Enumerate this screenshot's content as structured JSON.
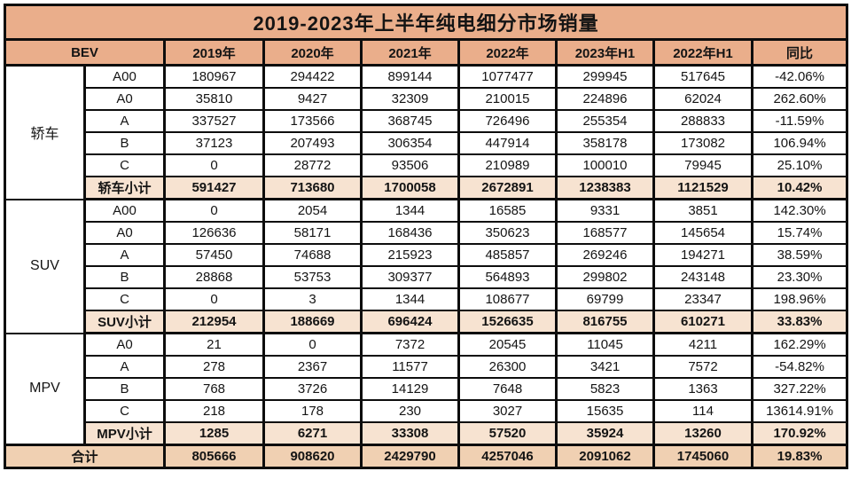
{
  "title": "2019-2023年上半年纯电细分市场销量",
  "colors": {
    "header_bg": "#eaae8b",
    "subtotal_bg": "#f7e3d1",
    "total_bg": "#f0d0b2",
    "border": "#0d0d0d",
    "text": "#141414",
    "row_bg": "#ffffff"
  },
  "chart_data": {
    "type": "table",
    "title": "2019-2023年上半年纯电细分市场销量",
    "columns": [
      "BEV",
      "2019年",
      "2020年",
      "2021年",
      "2022年",
      "2023年H1",
      "2022年H1",
      "同比"
    ],
    "sections": [
      {
        "group": "轿车",
        "rows": [
          [
            "A00",
            "180967",
            "294422",
            "899144",
            "1077477",
            "299945",
            "517645",
            "-42.06%"
          ],
          [
            "A0",
            "35810",
            "9427",
            "32309",
            "210015",
            "224896",
            "62024",
            "262.60%"
          ],
          [
            "A",
            "337527",
            "173566",
            "368745",
            "726496",
            "255354",
            "288833",
            "-11.59%"
          ],
          [
            "B",
            "37123",
            "207493",
            "306354",
            "447914",
            "358178",
            "173082",
            "106.94%"
          ],
          [
            "C",
            "0",
            "28772",
            "93506",
            "210989",
            "100010",
            "79945",
            "25.10%"
          ]
        ],
        "subtotal": [
          "轿车小计",
          "591427",
          "713680",
          "1700058",
          "2672891",
          "1238383",
          "1121529",
          "10.42%"
        ]
      },
      {
        "group": "SUV",
        "rows": [
          [
            "A00",
            "0",
            "2054",
            "1344",
            "16585",
            "9331",
            "3851",
            "142.30%"
          ],
          [
            "A0",
            "126636",
            "58171",
            "168436",
            "350623",
            "168577",
            "145654",
            "15.74%"
          ],
          [
            "A",
            "57450",
            "74688",
            "215923",
            "485857",
            "269246",
            "194271",
            "38.59%"
          ],
          [
            "B",
            "28868",
            "53753",
            "309377",
            "564893",
            "299802",
            "243148",
            "23.30%"
          ],
          [
            "C",
            "0",
            "3",
            "1344",
            "108677",
            "69799",
            "23347",
            "198.96%"
          ]
        ],
        "subtotal": [
          "SUV小计",
          "212954",
          "188669",
          "696424",
          "1526635",
          "816755",
          "610271",
          "33.83%"
        ]
      },
      {
        "group": "MPV",
        "rows": [
          [
            "A0",
            "21",
            "0",
            "7372",
            "20545",
            "11045",
            "4211",
            "162.29%"
          ],
          [
            "A",
            "278",
            "2367",
            "11577",
            "26300",
            "3421",
            "7572",
            "-54.82%"
          ],
          [
            "B",
            "768",
            "3726",
            "14129",
            "7648",
            "5823",
            "1363",
            "327.22%"
          ],
          [
            "C",
            "218",
            "178",
            "230",
            "3027",
            "15635",
            "114",
            "13614.91%"
          ]
        ],
        "subtotal": [
          "MPV小计",
          "1285",
          "6271",
          "33308",
          "57520",
          "35924",
          "13260",
          "170.92%"
        ]
      }
    ],
    "total": [
      "合计",
      "805666",
      "908620",
      "2429790",
      "4257046",
      "2091062",
      "1745060",
      "19.83%"
    ]
  }
}
